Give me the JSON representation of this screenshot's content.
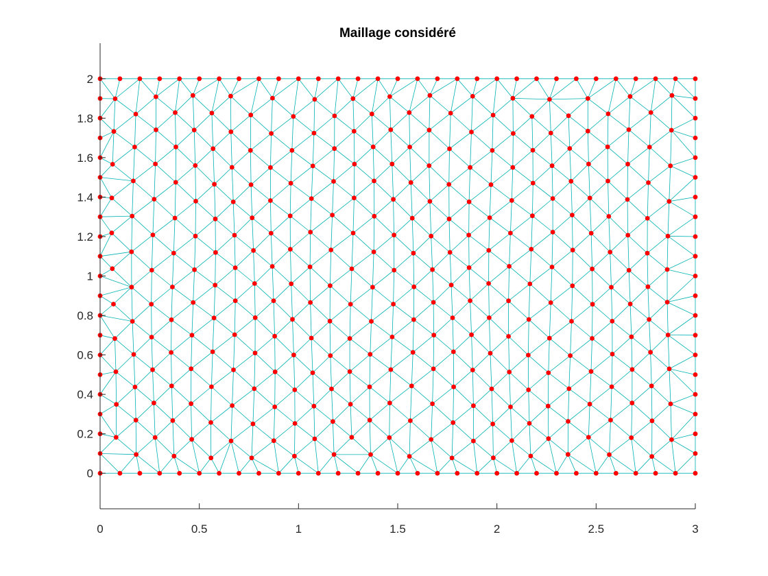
{
  "chart_data": {
    "type": "scatter",
    "title": "Maillage considéré",
    "xlabel": "",
    "ylabel": "",
    "xlim": [
      0,
      3
    ],
    "ylim": [
      -0.18,
      2.18
    ],
    "xticks": [
      0,
      0.5,
      1,
      1.5,
      2,
      2.5,
      3
    ],
    "xtick_labels": [
      "0",
      "0.5",
      "1",
      "1.5",
      "2",
      "2.5",
      "3"
    ],
    "yticks": [
      0,
      0.2,
      0.4,
      0.6,
      0.8,
      1,
      1.2,
      1.4,
      1.6,
      1.8,
      2
    ],
    "ytick_labels": [
      "0",
      "0.2",
      "0.4",
      "0.6",
      "0.8",
      "1",
      "1.2",
      "1.4",
      "1.6",
      "1.8",
      "2"
    ],
    "grid": false,
    "domain": {
      "x": [
        0,
        3
      ],
      "y": [
        0,
        2
      ]
    },
    "mesh": {
      "element_type": "triangle",
      "node_spacing": 0.1,
      "node_color": "#ff0000",
      "edge_color": "#00b2b2",
      "boundary_node_spacing": 0.1,
      "interior_row_spacing": 0.1732
    },
    "series": [
      {
        "kind": "edges"
      },
      {
        "kind": "nodes"
      }
    ]
  }
}
